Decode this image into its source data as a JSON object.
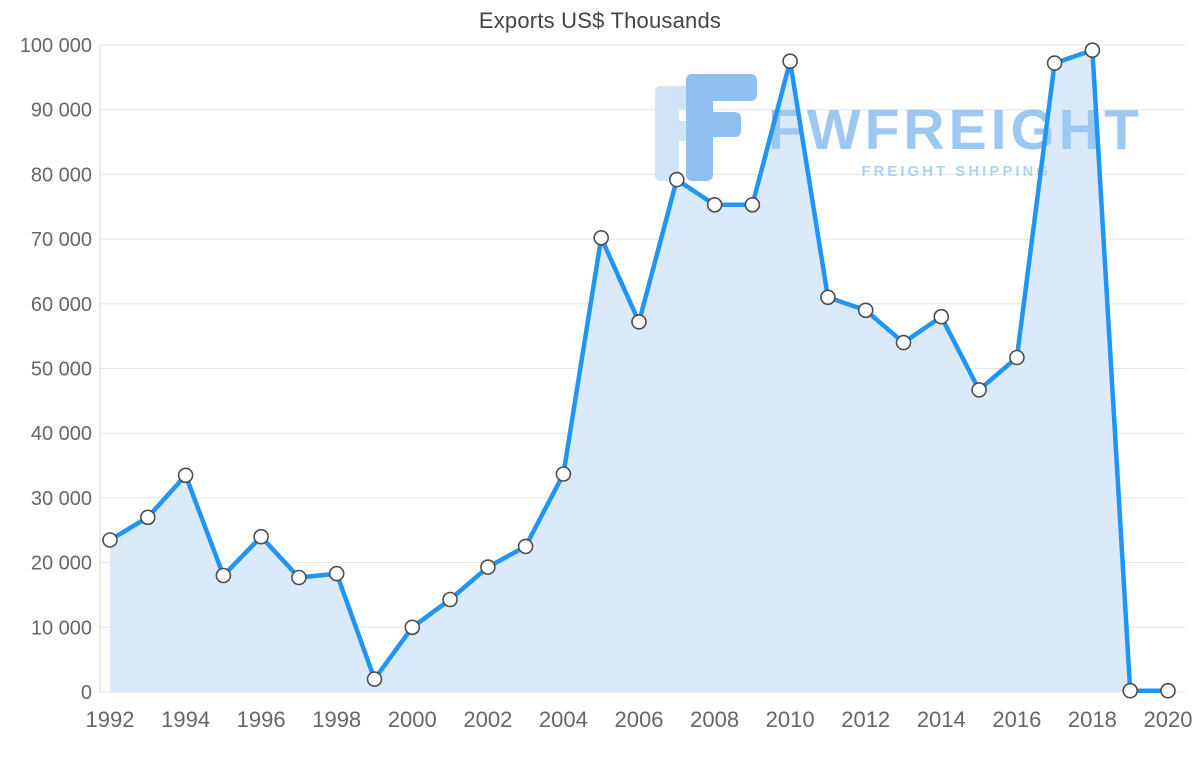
{
  "watermark": {
    "brand": "FWFREIGHT",
    "tagline": "FREIGHT SHIPPING",
    "brand_color": "#9cc8f2",
    "tagline_color": "#aed2f4",
    "logo_back_color": "#cfe4f9",
    "logo_front_color": "#8fc0ef"
  },
  "chart_data": {
    "type": "line",
    "title": "Exports US$ Thousands",
    "xlabel": "",
    "ylabel": "",
    "x": [
      1992,
      1993,
      1994,
      1995,
      1996,
      1997,
      1998,
      1999,
      2000,
      2001,
      2002,
      2003,
      2004,
      2005,
      2006,
      2007,
      2008,
      2009,
      2010,
      2011,
      2012,
      2013,
      2014,
      2015,
      2016,
      2017,
      2018,
      2019,
      2020
    ],
    "values": [
      23500,
      27000,
      33500,
      18000,
      24000,
      17700,
      18300,
      2000,
      10000,
      14300,
      19300,
      22500,
      33700,
      70200,
      57200,
      79200,
      75300,
      75300,
      97500,
      61000,
      59000,
      54000,
      58000,
      46700,
      51700,
      97200,
      99200,
      200,
      200
    ],
    "ylim": [
      0,
      100000
    ],
    "y_tick_step": 10000,
    "x_tick_step": 2,
    "y_tick_format": "space-thousands",
    "grid": true,
    "legend": "none",
    "colors": {
      "line": "#2095f3",
      "area": "#dbeafb",
      "marker_fill": "#ffffff",
      "marker_stroke": "#4d4d4d",
      "grid": "#e5e5e5",
      "axis": "#d5d5d5",
      "tick_label": "#666666",
      "title": "#444444"
    }
  }
}
